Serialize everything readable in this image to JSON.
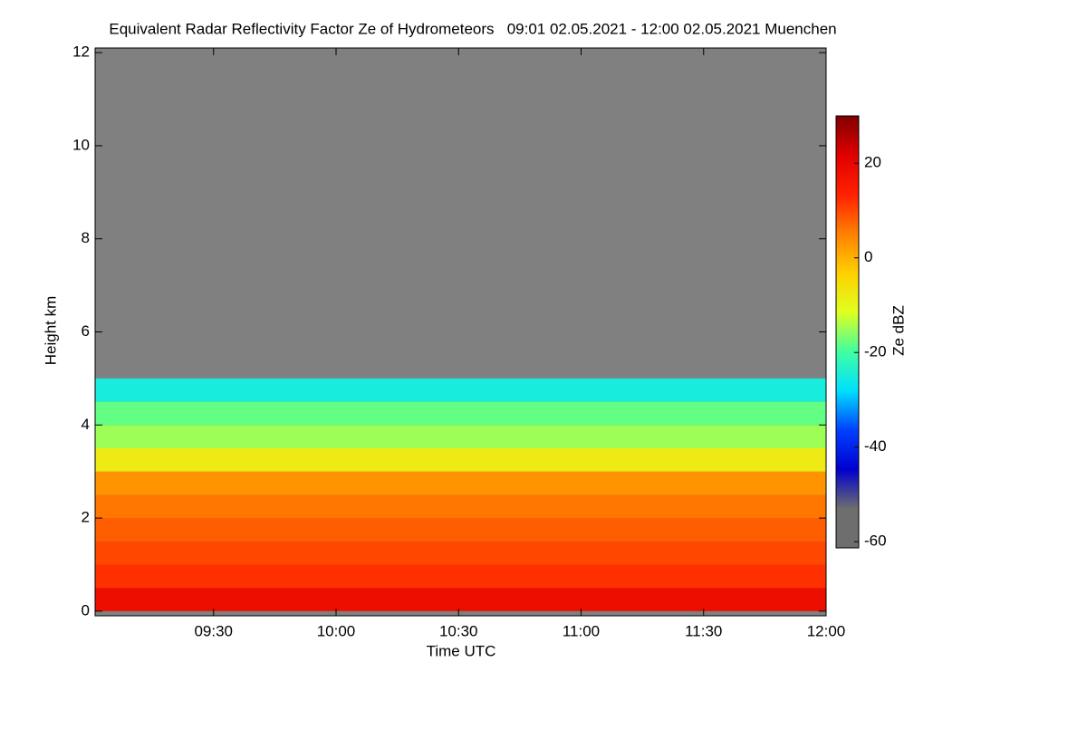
{
  "chart_data": {
    "type": "heatmap",
    "title": "Equivalent Radar Reflectivity Factor Ze of Hydrometeors   09:01 02.05.2021 - 12:00 02.05.2021 Muenchen",
    "x_label": "Time UTC",
    "y_label": "Height km",
    "colorbar_label": "Ze dBZ",
    "xlim": [
      541,
      720
    ],
    "xticks": [
      {
        "value": 570,
        "label": "09:30"
      },
      {
        "value": 600,
        "label": "10:00"
      },
      {
        "value": 630,
        "label": "10:30"
      },
      {
        "value": 660,
        "label": "11:00"
      },
      {
        "value": 690,
        "label": "11:30"
      },
      {
        "value": 720,
        "label": "12:00"
      }
    ],
    "ylim": [
      -0.1,
      12.1
    ],
    "yticks": [
      0,
      2,
      4,
      6,
      8,
      10,
      12
    ],
    "y_bins": [
      0,
      0.5,
      1,
      1.5,
      2,
      2.5,
      3,
      3.5,
      4,
      4.5,
      5
    ],
    "values": [
      18,
      12,
      10,
      8,
      6,
      3,
      -8,
      -15,
      -18,
      -25
    ],
    "no_data_color": "#808080",
    "clim": [
      -61.3,
      30
    ],
    "cticks": [
      20,
      0,
      -20,
      -40,
      -60
    ],
    "colormap": [
      "#6e6e6e",
      "#6e6e6e",
      "#0000d0",
      "#0040ff",
      "#00e0ff",
      "#40ffa0",
      "#e0ff20",
      "#ffd000",
      "#ff8000",
      "#ff2000",
      "#e00000",
      "#800000"
    ]
  }
}
